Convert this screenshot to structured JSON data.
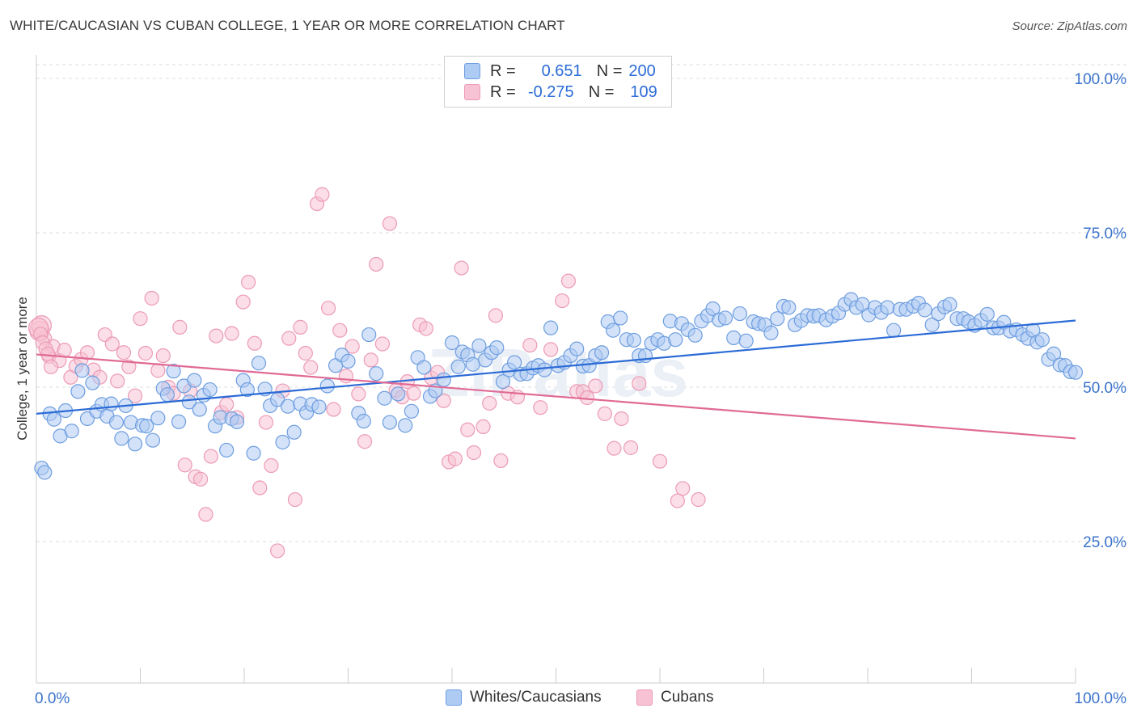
{
  "title": "WHITE/CAUCASIAN VS CUBAN COLLEGE, 1 YEAR OR MORE CORRELATION CHART",
  "source": "Source: ZipAtlas.com",
  "watermark": "ZIPatlas",
  "legend": {
    "rows": [
      {
        "r_label": "R =",
        "r_value": "0.651",
        "n_label": "N =",
        "n_value": "200"
      },
      {
        "r_label": "R =",
        "r_value": "-0.275",
        "n_label": "N =",
        "n_value": "109"
      }
    ]
  },
  "bottom_legend": [
    "Whites/Caucasians",
    "Cubans"
  ],
  "colors": {
    "blue_fill": "#aecbf3",
    "blue_stroke": "#6e9ee0",
    "blue_line": "#2b6bd6",
    "pink_fill": "#f7c2d3",
    "pink_stroke": "#ec9bb6",
    "pink_line": "#e06a95",
    "tick_text": "#3b73cc",
    "grid": "#dddddd"
  },
  "chart_data": {
    "type": "scatter",
    "title": "WHITE/CAUCASIAN VS CUBAN COLLEGE, 1 YEAR OR MORE CORRELATION CHART",
    "xlabel": "",
    "ylabel": "College, 1 year or more",
    "xlim": [
      0,
      100
    ],
    "ylim": [
      0,
      105
    ],
    "x_tick_labels": [
      "0.0%",
      "100.0%"
    ],
    "y_tick_labels": [
      "25.0%",
      "50.0%",
      "75.0%",
      "100.0%"
    ],
    "y_ticks": [
      25,
      50,
      75,
      100
    ],
    "grid": true,
    "legend_position": "top-center",
    "series": [
      {
        "name": "Whites/Caucasians",
        "r": 0.651,
        "n": 200,
        "trend": [
          [
            0,
            45.7
          ],
          [
            100,
            60.8
          ]
        ],
        "points": [
          [
            0.5,
            36.9
          ],
          [
            0.8,
            36.2
          ],
          [
            1.3,
            45.7
          ],
          [
            1.7,
            44.8
          ],
          [
            2.3,
            42.1
          ],
          [
            2.8,
            46.2
          ],
          [
            3.4,
            42.9
          ],
          [
            4,
            49.3
          ],
          [
            4.4,
            52.7
          ],
          [
            4.9,
            44.9
          ],
          [
            5.4,
            50.7
          ],
          [
            5.8,
            46.1
          ],
          [
            6.3,
            47.2
          ],
          [
            6.8,
            45.3
          ],
          [
            7.2,
            47.3
          ],
          [
            7.7,
            44.3
          ],
          [
            8.2,
            41.7
          ],
          [
            8.6,
            47
          ],
          [
            9.1,
            44.3
          ],
          [
            9.5,
            40.8
          ],
          [
            10.2,
            43.8
          ],
          [
            10.6,
            43.7
          ],
          [
            11.2,
            41.4
          ],
          [
            11.7,
            45
          ],
          [
            12.2,
            49.8
          ],
          [
            12.6,
            48.8
          ],
          [
            13.2,
            52.6
          ],
          [
            13.7,
            44.4
          ],
          [
            14.2,
            50.2
          ],
          [
            14.7,
            47.6
          ],
          [
            15.2,
            51.1
          ],
          [
            15.7,
            46.4
          ],
          [
            16.1,
            48.7
          ],
          [
            16.7,
            49.6
          ],
          [
            17.2,
            43.7
          ],
          [
            17.7,
            45.1
          ],
          [
            18.3,
            39.8
          ],
          [
            18.8,
            44.9
          ],
          [
            19.3,
            44.4
          ],
          [
            19.9,
            51.1
          ],
          [
            20.3,
            49.6
          ],
          [
            20.9,
            39.3
          ],
          [
            21.4,
            53.9
          ],
          [
            22,
            49.7
          ],
          [
            22.5,
            47
          ],
          [
            23.2,
            48
          ],
          [
            23.7,
            41.1
          ],
          [
            24.2,
            46.9
          ],
          [
            24.8,
            42.7
          ],
          [
            25.4,
            47.3
          ],
          [
            26,
            45.9
          ],
          [
            26.5,
            47.2
          ],
          [
            27.2,
            46.8
          ],
          [
            28,
            50.2
          ],
          [
            28.8,
            53.5
          ],
          [
            29.4,
            55.2
          ],
          [
            30,
            54.2
          ],
          [
            31,
            45.8
          ],
          [
            31.5,
            44.5
          ],
          [
            32,
            58.5
          ],
          [
            32.7,
            52.2
          ],
          [
            33.5,
            48.2
          ],
          [
            34,
            44.3
          ],
          [
            34.8,
            48.9
          ],
          [
            35.5,
            43.8
          ],
          [
            36.1,
            46.1
          ],
          [
            36.7,
            54.8
          ],
          [
            37.3,
            53.2
          ],
          [
            37.9,
            48.5
          ],
          [
            38.4,
            49.4
          ],
          [
            39.2,
            51.2
          ],
          [
            40,
            57.2
          ],
          [
            40.6,
            53.3
          ],
          [
            41,
            55.7
          ],
          [
            41.5,
            55.2
          ],
          [
            42,
            53.7
          ],
          [
            42.6,
            56.7
          ],
          [
            43.2,
            54.4
          ],
          [
            43.8,
            55.6
          ],
          [
            44.3,
            56.4
          ],
          [
            44.9,
            50.9
          ],
          [
            45.5,
            52.8
          ],
          [
            46,
            54
          ],
          [
            46.6,
            52.1
          ],
          [
            47.2,
            52.2
          ],
          [
            47.8,
            53.1
          ],
          [
            48.3,
            53.5
          ],
          [
            48.9,
            52.8
          ],
          [
            49.5,
            59.6
          ],
          [
            50.2,
            53.5
          ],
          [
            50.8,
            54
          ],
          [
            51.4,
            55.1
          ],
          [
            52,
            56.2
          ],
          [
            52.6,
            53.4
          ],
          [
            53.2,
            53.5
          ],
          [
            53.8,
            55.1
          ],
          [
            54.4,
            55.6
          ],
          [
            55,
            60.6
          ],
          [
            55.5,
            59.2
          ],
          [
            56.2,
            61.2
          ],
          [
            56.8,
            57.7
          ],
          [
            57.5,
            57.6
          ],
          [
            58,
            55.1
          ],
          [
            58.6,
            55.1
          ],
          [
            59.2,
            57.1
          ],
          [
            59.8,
            57.7
          ],
          [
            60.4,
            57.1
          ],
          [
            61,
            60.7
          ],
          [
            61.5,
            57.7
          ],
          [
            62.1,
            60.3
          ],
          [
            62.7,
            59.3
          ],
          [
            63.4,
            58.4
          ],
          [
            64,
            60.7
          ],
          [
            64.6,
            61.6
          ],
          [
            65.1,
            62.7
          ],
          [
            65.7,
            60.9
          ],
          [
            66.3,
            61.2
          ],
          [
            67.1,
            58
          ],
          [
            67.7,
            61.9
          ],
          [
            68.3,
            57.5
          ],
          [
            69,
            60.6
          ],
          [
            69.5,
            60.3
          ],
          [
            70.1,
            60.1
          ],
          [
            70.7,
            58.8
          ],
          [
            71.3,
            61.1
          ],
          [
            71.9,
            63.1
          ],
          [
            72.4,
            62.9
          ],
          [
            73,
            60.1
          ],
          [
            73.6,
            60.8
          ],
          [
            74.2,
            61.6
          ],
          [
            74.8,
            61.5
          ],
          [
            75.3,
            61.6
          ],
          [
            76,
            60.9
          ],
          [
            76.6,
            61.5
          ],
          [
            77.2,
            62
          ],
          [
            77.8,
            63.4
          ],
          [
            78.4,
            64.2
          ],
          [
            78.9,
            62.9
          ],
          [
            79.5,
            63.4
          ],
          [
            80.1,
            61.7
          ],
          [
            80.7,
            62.9
          ],
          [
            81.3,
            62.1
          ],
          [
            81.9,
            62.9
          ],
          [
            82.5,
            59.2
          ],
          [
            83.1,
            62.6
          ],
          [
            83.7,
            62.6
          ],
          [
            84.4,
            63.1
          ],
          [
            84.9,
            63.6
          ],
          [
            85.5,
            62.5
          ],
          [
            86.2,
            60.1
          ],
          [
            86.8,
            61.9
          ],
          [
            87.4,
            63
          ],
          [
            87.9,
            63.4
          ],
          [
            88.6,
            61.1
          ],
          [
            89.2,
            61.1
          ],
          [
            89.7,
            60.6
          ],
          [
            90.3,
            60
          ],
          [
            90.9,
            60.8
          ],
          [
            91.5,
            61.8
          ],
          [
            92.1,
            59.6
          ],
          [
            92.6,
            59.6
          ],
          [
            93.1,
            60.5
          ],
          [
            93.7,
            59.1
          ],
          [
            94.3,
            59.3
          ],
          [
            94.9,
            58.5
          ],
          [
            95.4,
            57.9
          ],
          [
            95.9,
            59.2
          ],
          [
            96.3,
            57.3
          ],
          [
            96.8,
            57.7
          ],
          [
            97.4,
            54.5
          ],
          [
            97.9,
            55.4
          ],
          [
            98.5,
            53.6
          ],
          [
            99,
            53.5
          ],
          [
            99.5,
            52.5
          ],
          [
            100,
            52.4
          ]
        ]
      },
      {
        "name": "Cubans",
        "r": -0.275,
        "n": 109,
        "trend": [
          [
            0,
            55.3
          ],
          [
            100,
            41.7
          ]
        ],
        "points": [
          [
            0.3,
            59.1
          ],
          [
            0.5,
            60
          ],
          [
            0.8,
            57.9
          ],
          [
            1.2,
            55
          ],
          [
            1.6,
            56.6
          ],
          [
            2.2,
            54.3
          ],
          [
            2.7,
            56
          ],
          [
            3.3,
            51.6
          ],
          [
            3.8,
            53.4
          ],
          [
            4.3,
            54.5
          ],
          [
            4.9,
            55.6
          ],
          [
            5.5,
            52.8
          ],
          [
            6.1,
            51.6
          ],
          [
            6.6,
            58.5
          ],
          [
            7.3,
            57
          ],
          [
            7.8,
            51
          ],
          [
            8.4,
            55.6
          ],
          [
            8.9,
            53.3
          ],
          [
            9.5,
            48.6
          ],
          [
            10,
            61.1
          ],
          [
            10.5,
            55.5
          ],
          [
            11.1,
            64.4
          ],
          [
            11.7,
            52.7
          ],
          [
            12.2,
            55.1
          ],
          [
            12.7,
            50
          ],
          [
            13.2,
            49
          ],
          [
            13.8,
            59.7
          ],
          [
            14.3,
            37.4
          ],
          [
            14.8,
            49.4
          ],
          [
            15.3,
            35.5
          ],
          [
            15.8,
            35.1
          ],
          [
            16.3,
            29.4
          ],
          [
            16.8,
            38.8
          ],
          [
            17.3,
            58.3
          ],
          [
            17.8,
            45.9
          ],
          [
            18.3,
            47.2
          ],
          [
            18.8,
            58.7
          ],
          [
            19.3,
            45.1
          ],
          [
            19.9,
            63.8
          ],
          [
            20.4,
            67
          ],
          [
            21,
            57.1
          ],
          [
            21.5,
            33.7
          ],
          [
            22.1,
            44.3
          ],
          [
            22.6,
            37.3
          ],
          [
            23.2,
            23.5
          ],
          [
            23.7,
            49.4
          ],
          [
            24.3,
            57.9
          ],
          [
            24.9,
            31.8
          ],
          [
            25.4,
            59.7
          ],
          [
            25.9,
            55.5
          ],
          [
            26.4,
            53.2
          ],
          [
            27,
            79.7
          ],
          [
            27.5,
            81.2
          ],
          [
            28.1,
            62.8
          ],
          [
            28.6,
            46.4
          ],
          [
            29.2,
            59.2
          ],
          [
            29.8,
            51.8
          ],
          [
            30.4,
            56.6
          ],
          [
            31,
            48.9
          ],
          [
            31.6,
            41.2
          ],
          [
            32.2,
            54.4
          ],
          [
            32.7,
            69.9
          ],
          [
            33.3,
            57
          ],
          [
            34,
            76.5
          ],
          [
            34.6,
            49.5
          ],
          [
            35.2,
            48.4
          ],
          [
            35.7,
            50.9
          ],
          [
            36.3,
            49
          ],
          [
            36.9,
            60.1
          ],
          [
            37.5,
            59.5
          ],
          [
            38,
            51.5
          ],
          [
            38.6,
            52.4
          ],
          [
            39.2,
            47.8
          ],
          [
            39.7,
            37.9
          ],
          [
            40.3,
            38.4
          ],
          [
            40.9,
            69.3
          ],
          [
            41.5,
            43.1
          ],
          [
            42.1,
            39.4
          ],
          [
            43,
            43.6
          ],
          [
            43.6,
            47.4
          ],
          [
            44.2,
            61.6
          ],
          [
            44.7,
            38.1
          ],
          [
            45.4,
            49
          ],
          [
            46.3,
            48.4
          ],
          [
            47.5,
            56.8
          ],
          [
            48.5,
            46.7
          ],
          [
            49.5,
            56.1
          ],
          [
            50.6,
            64
          ],
          [
            51.2,
            67.2
          ],
          [
            52,
            49.3
          ],
          [
            52.6,
            49.3
          ],
          [
            53,
            48.3
          ],
          [
            53.8,
            50.2
          ],
          [
            54.7,
            45.7
          ],
          [
            55.6,
            40.1
          ],
          [
            56.3,
            44.9
          ],
          [
            57.2,
            40.2
          ],
          [
            58,
            50.6
          ],
          [
            60,
            38
          ],
          [
            61.7,
            31.6
          ],
          [
            62.2,
            33.6
          ],
          [
            63.7,
            31.8
          ],
          [
            0.2,
            59.6
          ],
          [
            0.4,
            58.6
          ],
          [
            0.6,
            57.2
          ],
          [
            0.9,
            56.2
          ],
          [
            1.1,
            55.4
          ],
          [
            1.4,
            53.3
          ]
        ]
      }
    ]
  }
}
